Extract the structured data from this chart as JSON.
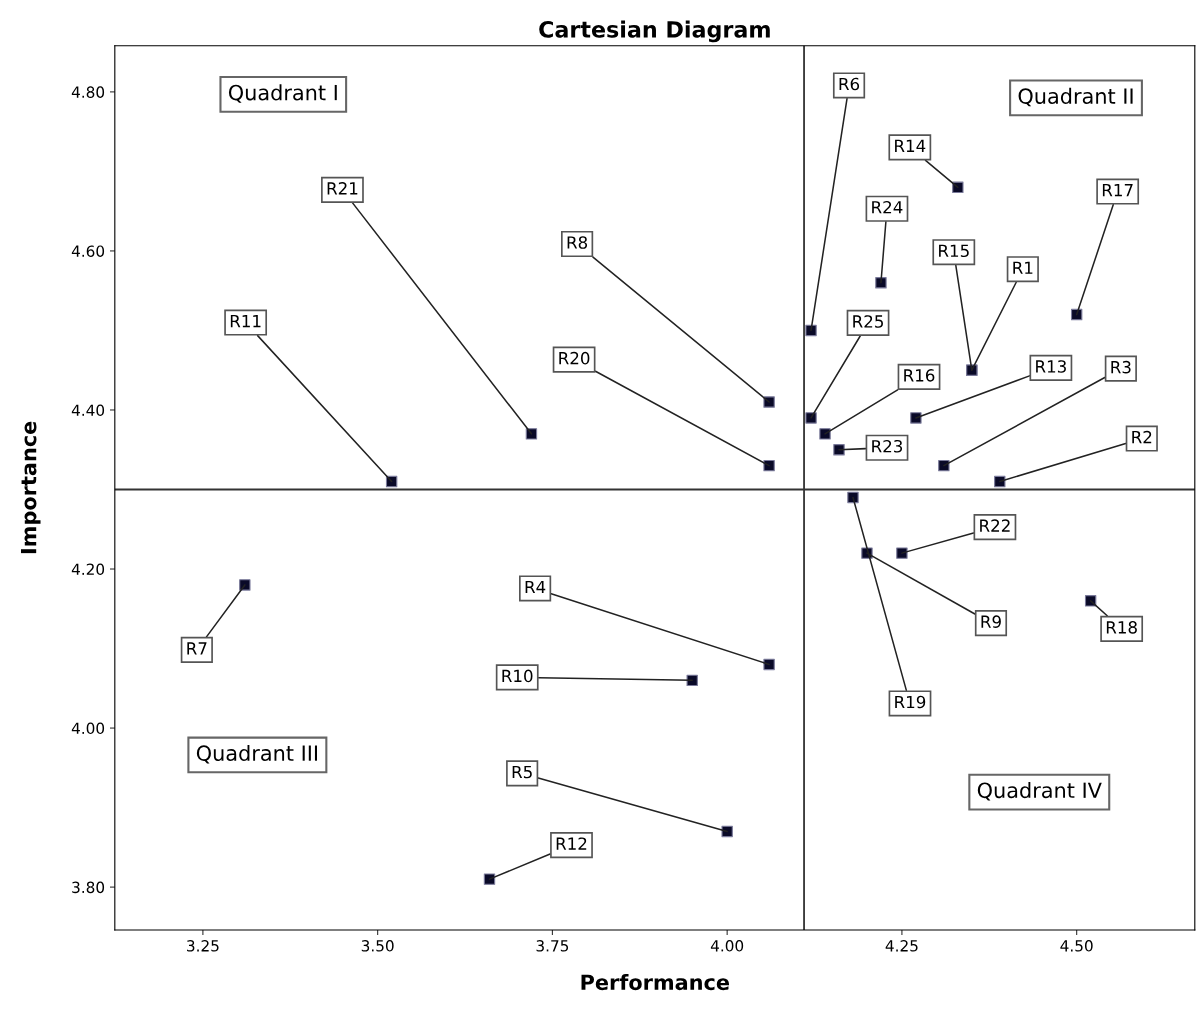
{
  "chart_data": {
    "type": "scatter",
    "title": "Cartesian Diagram",
    "xlabel": "Performance",
    "ylabel": "Importance",
    "xlim": [
      3.124,
      4.669
    ],
    "ylim": [
      3.746,
      4.858
    ],
    "xticks": [
      {
        "value": 3.25,
        "label": "3.25"
      },
      {
        "value": 3.5,
        "label": "3.50"
      },
      {
        "value": 3.75,
        "label": "3.75"
      },
      {
        "value": 4.0,
        "label": "4.00"
      },
      {
        "value": 4.25,
        "label": "4.25"
      },
      {
        "value": 4.5,
        "label": "4.50"
      }
    ],
    "yticks": [
      {
        "value": 3.8,
        "label": "3.80"
      },
      {
        "value": 4.0,
        "label": "4.00"
      },
      {
        "value": 4.2,
        "label": "4.20"
      },
      {
        "value": 4.4,
        "label": "4.40"
      },
      {
        "value": 4.6,
        "label": "4.60"
      },
      {
        "value": 4.8,
        "label": "4.80"
      }
    ],
    "grid": false,
    "marker": "square",
    "series": [
      {
        "color": "#0a0a28",
        "x": [
          4.12,
          4.33,
          4.22,
          4.35,
          4.35,
          4.5,
          4.12,
          4.14,
          4.16,
          4.27,
          4.31,
          4.39,
          4.06,
          4.06,
          3.72,
          3.52,
          3.31,
          4.06,
          3.95,
          4.0,
          3.66,
          4.25,
          4.2,
          4.18,
          4.52
        ],
        "values": [
          4.5,
          4.68,
          4.56,
          4.45,
          4.45,
          4.52,
          4.39,
          4.37,
          4.35,
          4.39,
          4.33,
          4.31,
          4.41,
          4.33,
          4.37,
          4.31,
          4.18,
          4.08,
          4.06,
          3.87,
          3.81,
          4.22,
          4.22,
          4.29,
          4.16
        ]
      }
    ],
    "ref_lines": [
      {
        "axis": "x",
        "value": 4.11,
        "color": "#333333"
      },
      {
        "axis": "y",
        "value": 4.3,
        "color": "#333333"
      }
    ],
    "annotations": [
      "Quadrant I",
      "Quadrant II",
      "Quadrant III",
      "Quadrant IV",
      {
        "text": "R6",
        "x": 4.12,
        "y": 4.5
      },
      {
        "text": "R14",
        "x": 4.33,
        "y": 4.68
      },
      {
        "text": "R24",
        "x": 4.22,
        "y": 4.56
      },
      {
        "text": "R15",
        "x": 4.35,
        "y": 4.45
      },
      {
        "text": "R1",
        "x": 4.35,
        "y": 4.45
      },
      {
        "text": "R17",
        "x": 4.5,
        "y": 4.52
      },
      {
        "text": "R25",
        "x": 4.12,
        "y": 4.39
      },
      {
        "text": "R16",
        "x": 4.14,
        "y": 4.37
      },
      {
        "text": "R23",
        "x": 4.16,
        "y": 4.35
      },
      {
        "text": "R13",
        "x": 4.27,
        "y": 4.39
      },
      {
        "text": "R3",
        "x": 4.31,
        "y": 4.33
      },
      {
        "text": "R2",
        "x": 4.39,
        "y": 4.31
      },
      {
        "text": "R8",
        "x": 4.06,
        "y": 4.41
      },
      {
        "text": "R20",
        "x": 4.06,
        "y": 4.33
      },
      {
        "text": "R21",
        "x": 3.72,
        "y": 4.37
      },
      {
        "text": "R11",
        "x": 3.52,
        "y": 4.31
      },
      {
        "text": "R7",
        "x": 3.31,
        "y": 4.18
      },
      {
        "text": "R4",
        "x": 4.06,
        "y": 4.08
      },
      {
        "text": "R10",
        "x": 3.95,
        "y": 4.06
      },
      {
        "text": "R5",
        "x": 4.0,
        "y": 3.87
      },
      {
        "text": "R12",
        "x": 3.66,
        "y": 3.81
      },
      {
        "text": "R22",
        "x": 4.25,
        "y": 4.22
      },
      {
        "text": "R9",
        "x": 4.2,
        "y": 4.22
      },
      {
        "text": "R19",
        "x": 4.18,
        "y": 4.29
      },
      {
        "text": "R18",
        "x": 4.52,
        "y": 4.16
      }
    ]
  }
}
